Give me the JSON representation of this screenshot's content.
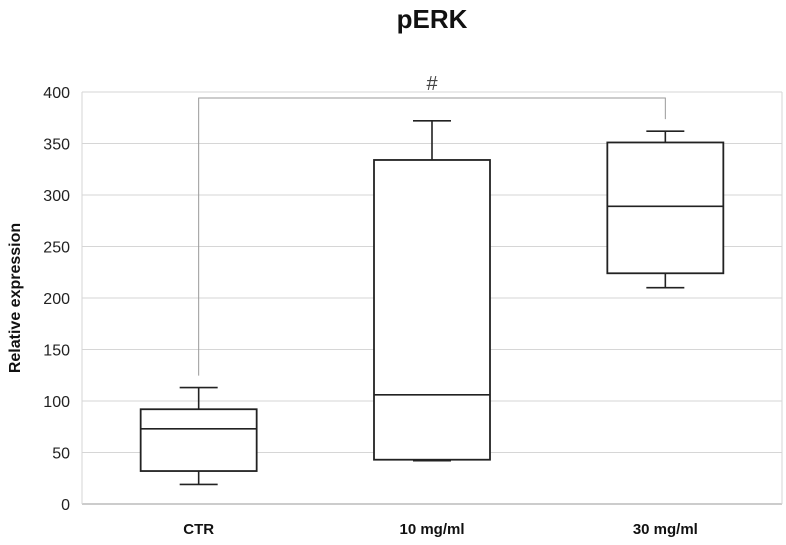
{
  "chart_data": {
    "type": "box",
    "title": "pERK",
    "ylabel": "Relative expression",
    "xlabel": "",
    "ylim": [
      0,
      400
    ],
    "yticks": [
      "0",
      "50",
      "100",
      "150",
      "200",
      "250",
      "300",
      "350",
      "400"
    ],
    "grid": true,
    "categories": [
      "CTR",
      "10 mg/ml",
      "30 mg/ml"
    ],
    "boxes": [
      {
        "category": "CTR",
        "min": 19,
        "q1": 32,
        "median": 73,
        "q3": 92,
        "max": 113
      },
      {
        "category": "10 mg/ml",
        "min": 42,
        "q1": 43,
        "median": 106,
        "q3": 334,
        "max": 372
      },
      {
        "category": "30 mg/ml",
        "min": 210,
        "q1": 224,
        "median": 289,
        "q3": 351,
        "max": 362
      }
    ],
    "annotation": {
      "text": "#",
      "from": "CTR",
      "to": "30 mg/ml"
    }
  }
}
